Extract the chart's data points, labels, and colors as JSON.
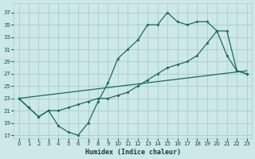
{
  "xlabel": "Humidex (Indice chaleur)",
  "bg_color": "#cce8e8",
  "grid_color": "#aacccc",
  "line_color": "#1a6b5a",
  "xlim": [
    -0.5,
    23.5
  ],
  "ylim": [
    16.5,
    38.5
  ],
  "yticks": [
    17,
    19,
    21,
    23,
    25,
    27,
    29,
    31,
    33,
    35,
    37
  ],
  "xticks": [
    0,
    1,
    2,
    3,
    4,
    5,
    6,
    7,
    8,
    9,
    10,
    11,
    12,
    13,
    14,
    15,
    16,
    17,
    18,
    19,
    20,
    21,
    22,
    23
  ],
  "curve1_x": [
    0,
    1,
    2,
    3,
    4,
    5,
    6,
    7,
    8,
    9,
    10,
    11,
    12,
    13,
    14,
    15,
    16,
    17,
    18,
    19,
    20,
    21,
    22,
    23
  ],
  "curve1_y": [
    23,
    21.5,
    20,
    21,
    18.5,
    17.5,
    17,
    19,
    22.5,
    25.5,
    29.5,
    31,
    32.5,
    35,
    35,
    37,
    35.5,
    35,
    35.5,
    35.5,
    34,
    30,
    27.5,
    27
  ],
  "curve2_x": [
    0,
    1,
    2,
    3,
    4,
    5,
    6,
    7,
    8,
    9,
    10,
    11,
    12,
    13,
    14,
    15,
    16,
    17,
    18,
    19,
    20,
    21,
    22,
    23
  ],
  "curve2_y": [
    23,
    21.5,
    20,
    21,
    21,
    21.5,
    22,
    22.5,
    23,
    23,
    23.5,
    24,
    25,
    26,
    27,
    28,
    28.5,
    29,
    30,
    32,
    34,
    34,
    27.5,
    27
  ],
  "line3_x": [
    0,
    23
  ],
  "line3_y": [
    23,
    27.5
  ]
}
